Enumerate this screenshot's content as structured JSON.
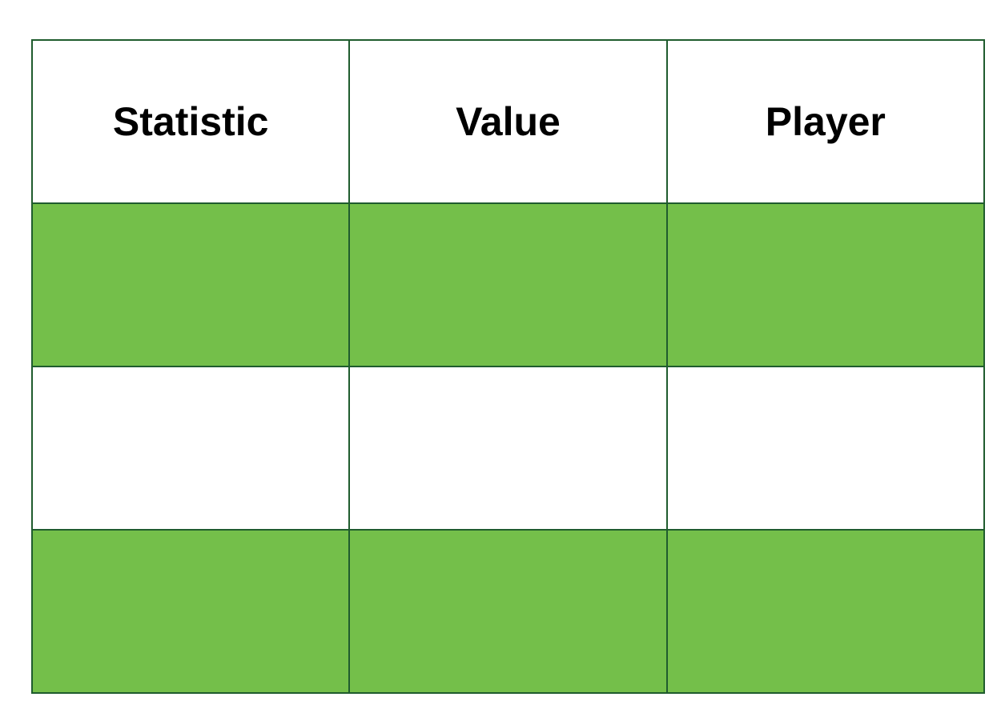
{
  "table": {
    "headers": [
      "Statistic",
      "Value",
      "Player"
    ],
    "rows": [
      [
        "",
        "",
        ""
      ],
      [
        "",
        "",
        ""
      ],
      [
        "",
        "",
        ""
      ]
    ],
    "colors": {
      "border": "#1f5c2e",
      "row_green": "#74bf4a",
      "row_white": "#ffffff",
      "header_bg": "#ffffff"
    }
  }
}
